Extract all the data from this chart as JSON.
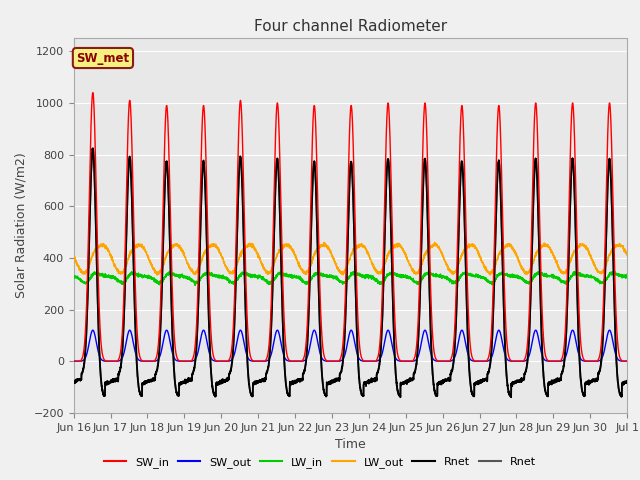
{
  "title": "Four channel Radiometer",
  "xlabel": "Time",
  "ylabel": "Solar Radiation (W/m2)",
  "ylim": [
    -200,
    1250
  ],
  "num_days": 15,
  "background_color": "#f0f0f0",
  "plot_bg_color": "#e8e8e8",
  "annotation_text": "SW_met",
  "annotation_bg": "#f5f080",
  "annotation_border": "#8b1a1a",
  "x_tick_labels": [
    "Jun 16",
    "Jun 17",
    "Jun 18",
    "Jun 19",
    "Jun 20",
    "Jun 21",
    "Jun 22",
    "Jun 23",
    "Jun 24",
    "Jun 25",
    "Jun 26",
    "Jun 27",
    "Jun 28",
    "Jun 29",
    "Jun 30",
    "Jul 1"
  ],
  "legend_entries": [
    {
      "label": "SW_in",
      "color": "#ff0000"
    },
    {
      "label": "SW_out",
      "color": "#0000ff"
    },
    {
      "label": "LW_in",
      "color": "#00cc00"
    },
    {
      "label": "LW_out",
      "color": "#ffa500"
    },
    {
      "label": "Rnet",
      "color": "#000000"
    },
    {
      "label": "Rnet",
      "color": "#555555"
    }
  ],
  "sw_in_peak": 1000,
  "sw_out_peak": 120,
  "lw_in_base": 310,
  "lw_out_base": 400,
  "rnet_night": -80,
  "rnet_peak": 800
}
